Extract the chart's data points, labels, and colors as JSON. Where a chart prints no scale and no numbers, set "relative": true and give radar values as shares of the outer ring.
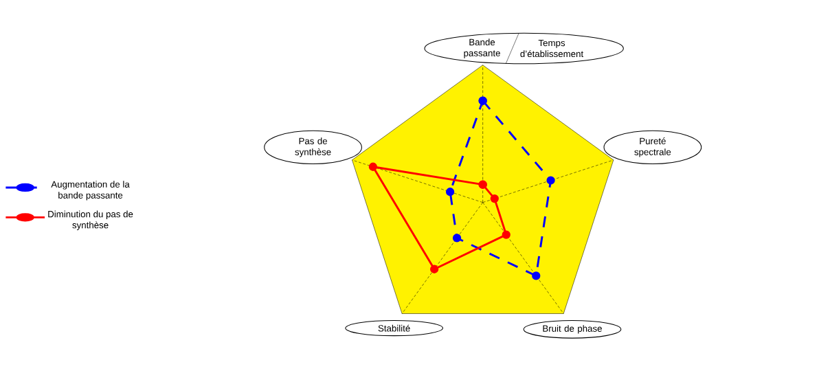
{
  "chart_data": {
    "type": "radar",
    "relative": true,
    "categories": [
      "Bande passante",
      "Pureté spectrale",
      "Bruit de phase",
      "Stabilité",
      "Pas de synthèse"
    ],
    "annotations": [
      "Temps d’établissement"
    ],
    "series": [
      {
        "name": "Augmentation de la bande passante",
        "color": "#0000ff",
        "line_style": "dashed",
        "values": [
          0.74,
          0.52,
          0.66,
          0.32,
          0.25
        ]
      },
      {
        "name": "Diminution du pas de synthèse",
        "color": "#ff0000",
        "line_style": "solid",
        "values": [
          0.13,
          0.09,
          0.29,
          0.6,
          0.84
        ]
      }
    ],
    "marker": "circle",
    "legend": "left"
  }
}
